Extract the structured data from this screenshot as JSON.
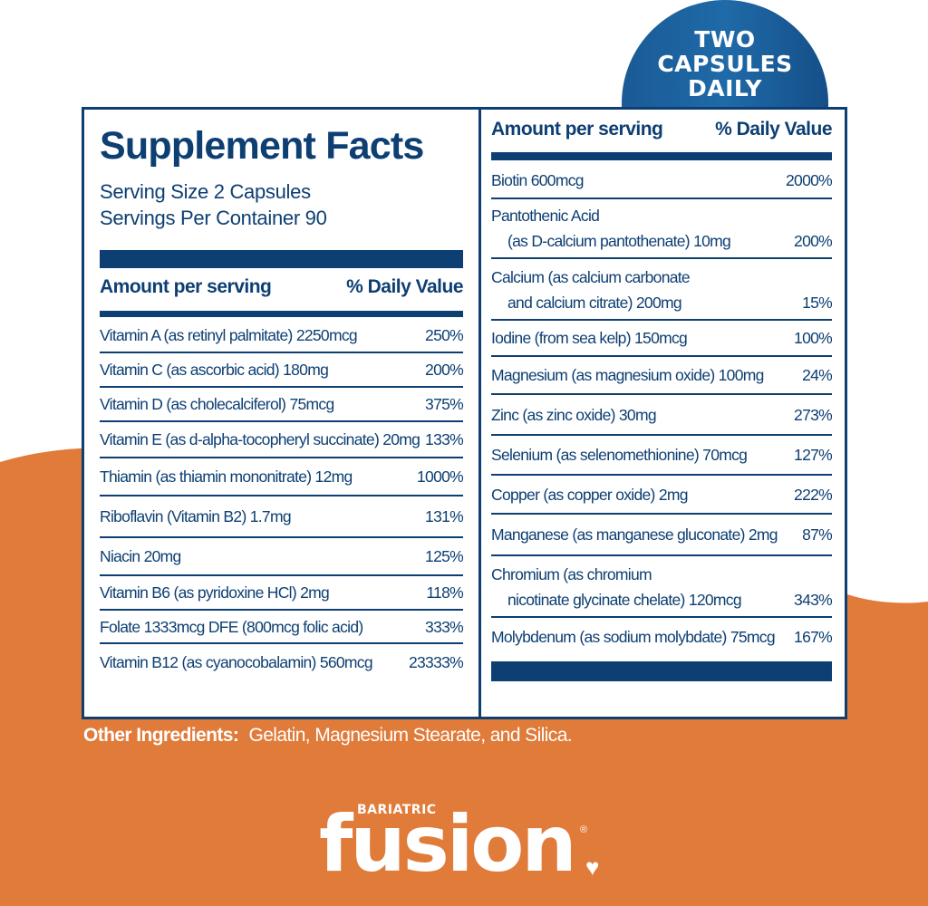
{
  "colors": {
    "navy": "#0d3f73",
    "orange": "#e07b3a",
    "badge": "#1f6aa8"
  },
  "badge": {
    "line1": "TWO",
    "line2": "CAPSULES",
    "line3": "DAILY"
  },
  "label": {
    "title": "Supplement Facts",
    "serving_size": "Serving Size 2 Capsules",
    "servings_per_container": "Servings Per Container 90",
    "left": {
      "header_amount": "Amount per serving",
      "header_dv": "% Daily Value",
      "rows": [
        {
          "name": "Vitamin A (as retinyl palmitate) 2250mcg",
          "dv": "250%"
        },
        {
          "name": "Vitamin C (as ascorbic acid) 180mg",
          "dv": "200%"
        },
        {
          "name": "Vitamin D (as cholecalciferol) 75mcg",
          "dv": "375%"
        },
        {
          "name": "Vitamin E (as d-alpha-tocopheryl succinate) 20mg",
          "dv": "133%"
        },
        {
          "name": "Thiamin (as thiamin mononitrate) 12mg",
          "dv": "1000%"
        },
        {
          "name": "Riboflavin (Vitamin B2) 1.7mg",
          "dv": "131%"
        },
        {
          "name": "Niacin 20mg",
          "dv": "125%"
        },
        {
          "name": "Vitamin B6 (as pyridoxine HCl) 2mg",
          "dv": "118%"
        },
        {
          "name": "Folate 1333mcg DFE (800mcg folic acid)",
          "dv": "333%"
        },
        {
          "name": "Vitamin B12 (as cyanocobalamin) 560mcg",
          "dv": "23333%"
        }
      ]
    },
    "right": {
      "header_amount": "Amount per serving",
      "header_dv": "% Daily Value",
      "rows": [
        {
          "name": "Biotin 600mcg",
          "dv": "2000%"
        },
        {
          "name": "Pantothenic Acid",
          "name2": "(as D-calcium pantothenate) 10mg",
          "dv": "200%"
        },
        {
          "name": "Calcium (as calcium carbonate",
          "name2": "and calcium citrate) 200mg",
          "dv": "15%"
        },
        {
          "name": "Iodine (from sea kelp) 150mcg",
          "dv": "100%"
        },
        {
          "name": "Magnesium (as magnesium oxide) 100mg",
          "dv": "24%"
        },
        {
          "name": "Zinc (as zinc oxide) 30mg",
          "dv": "273%"
        },
        {
          "name": "Selenium (as selenomethionine) 70mcg",
          "dv": "127%"
        },
        {
          "name": "Copper (as copper oxide) 2mg",
          "dv": "222%"
        },
        {
          "name": "Manganese (as manganese gluconate) 2mg",
          "dv": "87%"
        },
        {
          "name": "Chromium (as chromium",
          "name2": "nicotinate glycinate chelate) 120mcg",
          "dv": "343%"
        },
        {
          "name": "Molybdenum (as sodium molybdate) 75mcg",
          "dv": "167%"
        }
      ]
    }
  },
  "other_ingredients": {
    "label": "Other Ingredients:",
    "text": "Gelatin, Magnesium Stearate, and Silica."
  },
  "logo": {
    "small": "BARIATRIC",
    "big": "fusion",
    "reg": "®"
  }
}
